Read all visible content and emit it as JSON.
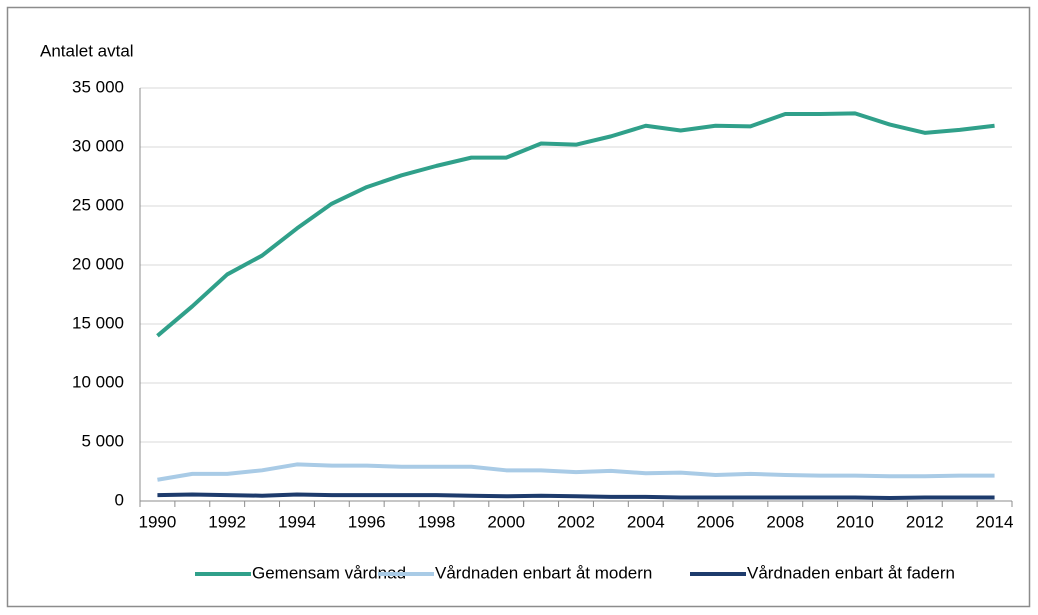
{
  "chart_data": {
    "type": "line",
    "ylabel": "Antalet avtal",
    "categories": [
      "1990",
      null,
      "1992",
      null,
      "1994",
      null,
      "1996",
      null,
      "1998",
      null,
      "2000",
      null,
      "2002",
      null,
      "2004",
      null,
      "2006",
      null,
      "2008",
      null,
      "2010",
      null,
      "2012",
      null,
      "2014"
    ],
    "series": [
      {
        "name": "Gemensam vårdnad",
        "color": "#30a08a",
        "values": [
          14000,
          16500,
          19200,
          20800,
          23100,
          25200,
          26600,
          27600,
          28400,
          29100,
          29100,
          30300,
          30200,
          30900,
          31800,
          31400,
          31800,
          31750,
          32800,
          32800,
          32850,
          31900,
          31200,
          31450,
          31800
        ]
      },
      {
        "name": "Vårdnaden enbart åt modern",
        "color": "#a9cbe6",
        "values": [
          1800,
          2300,
          2300,
          2600,
          3100,
          3000,
          3000,
          2900,
          2900,
          2900,
          2600,
          2600,
          2450,
          2550,
          2350,
          2400,
          2200,
          2300,
          2200,
          2150,
          2150,
          2100,
          2100,
          2150,
          2150
        ]
      },
      {
        "name": "Vårdnaden enbart åt fadern",
        "color": "#1d3b6c",
        "values": [
          500,
          550,
          500,
          450,
          550,
          500,
          500,
          500,
          500,
          450,
          400,
          450,
          400,
          350,
          350,
          300,
          300,
          300,
          300,
          300,
          300,
          250,
          300,
          300,
          300
        ]
      }
    ],
    "ylim": [
      0,
      35000
    ],
    "yticks": [
      0,
      {
        "value": 5000,
        "label": "5 000"
      },
      {
        "value": 10000,
        "label": "10 000"
      },
      {
        "value": 15000,
        "label": "15 000"
      },
      {
        "value": 20000,
        "label": "20 000"
      },
      {
        "value": 25000,
        "label": "25 000"
      },
      {
        "value": 30000,
        "label": "30 000"
      },
      {
        "value": 35000,
        "label": "35 000"
      }
    ],
    "grid": true,
    "legend": "bottom"
  }
}
